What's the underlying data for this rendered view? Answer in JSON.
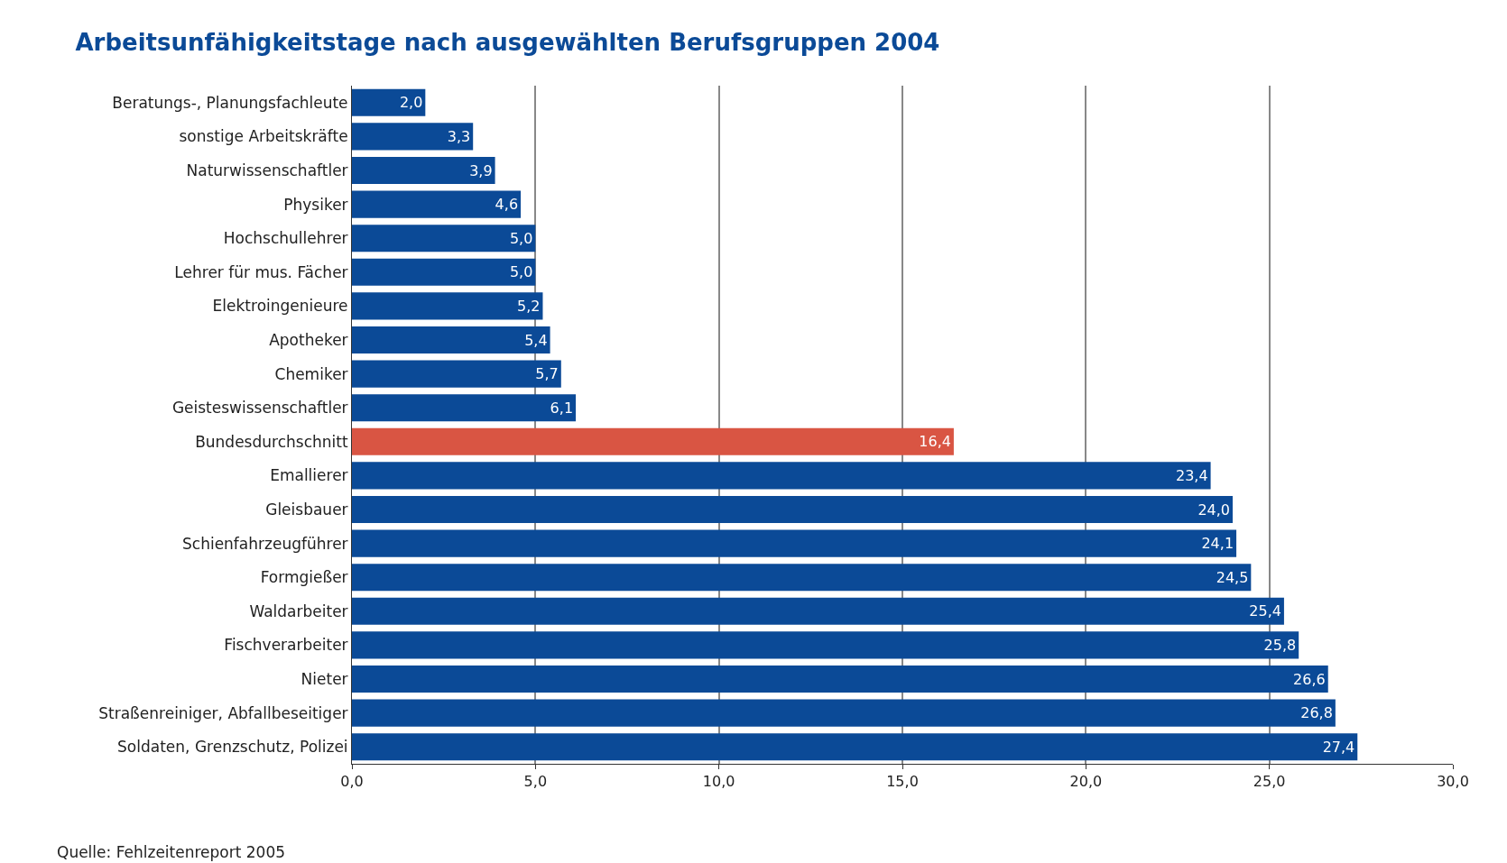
{
  "chart_data": {
    "type": "bar",
    "orientation": "horizontal",
    "title": "Arbeitsunfähigkeitstage nach ausgewählten Berufsgruppen 2004",
    "categories": [
      "Beratungs-, Planungsfachleute",
      "sonstige Arbeitskräfte",
      "Naturwissenschaftler",
      "Physiker",
      "Hochschullehrer",
      "Lehrer für mus. Fächer",
      "Elektroingenieure",
      "Apotheker",
      "Chemiker",
      "Geisteswissenschaftler",
      "Bundesdurchschnitt",
      "Emallierer",
      "Gleisbauer",
      "Schienfahrzeugführer",
      "Formgießer",
      "Waldarbeiter",
      "Fischverarbeiter",
      "Nieter",
      "Straßenreiniger, Abfallbeseitiger",
      "Soldaten, Grenzschutz, Polizei"
    ],
    "values": [
      2.0,
      3.3,
      3.9,
      4.6,
      5.0,
      5.0,
      5.2,
      5.4,
      5.7,
      6.1,
      16.4,
      23.4,
      24.0,
      24.1,
      24.5,
      25.4,
      25.8,
      26.6,
      26.8,
      27.4
    ],
    "value_labels": [
      "2,0",
      "3,3",
      "3,9",
      "4,6",
      "5,0",
      "5,0",
      "5,2",
      "5,4",
      "5,7",
      "6,1",
      "16,4",
      "23,4",
      "24,0",
      "24,1",
      "24,5",
      "25,4",
      "25,8",
      "26,6",
      "26,8",
      "27,4"
    ],
    "colors": [
      "#0b4a97",
      "#0b4a97",
      "#0b4a97",
      "#0b4a97",
      "#0b4a97",
      "#0b4a97",
      "#0b4a97",
      "#0b4a97",
      "#0b4a97",
      "#0b4a97",
      "#d95543",
      "#0b4a97",
      "#0b4a97",
      "#0b4a97",
      "#0b4a97",
      "#0b4a97",
      "#0b4a97",
      "#0b4a97",
      "#0b4a97",
      "#0b4a97"
    ],
    "xlim": [
      0,
      30
    ],
    "xticks": [
      {
        "value": 0,
        "label": "0,0"
      },
      {
        "value": 5,
        "label": "5,0"
      },
      {
        "value": 10,
        "label": "10,0"
      },
      {
        "value": 15,
        "label": "15,0"
      },
      {
        "value": 20,
        "label": "20,0"
      },
      {
        "value": 25,
        "label": "25,0"
      },
      {
        "value": 30,
        "label": "30,0"
      }
    ],
    "grid": "x",
    "annotations": [
      "Quelle: Fehlzeitenreport 2005"
    ]
  }
}
